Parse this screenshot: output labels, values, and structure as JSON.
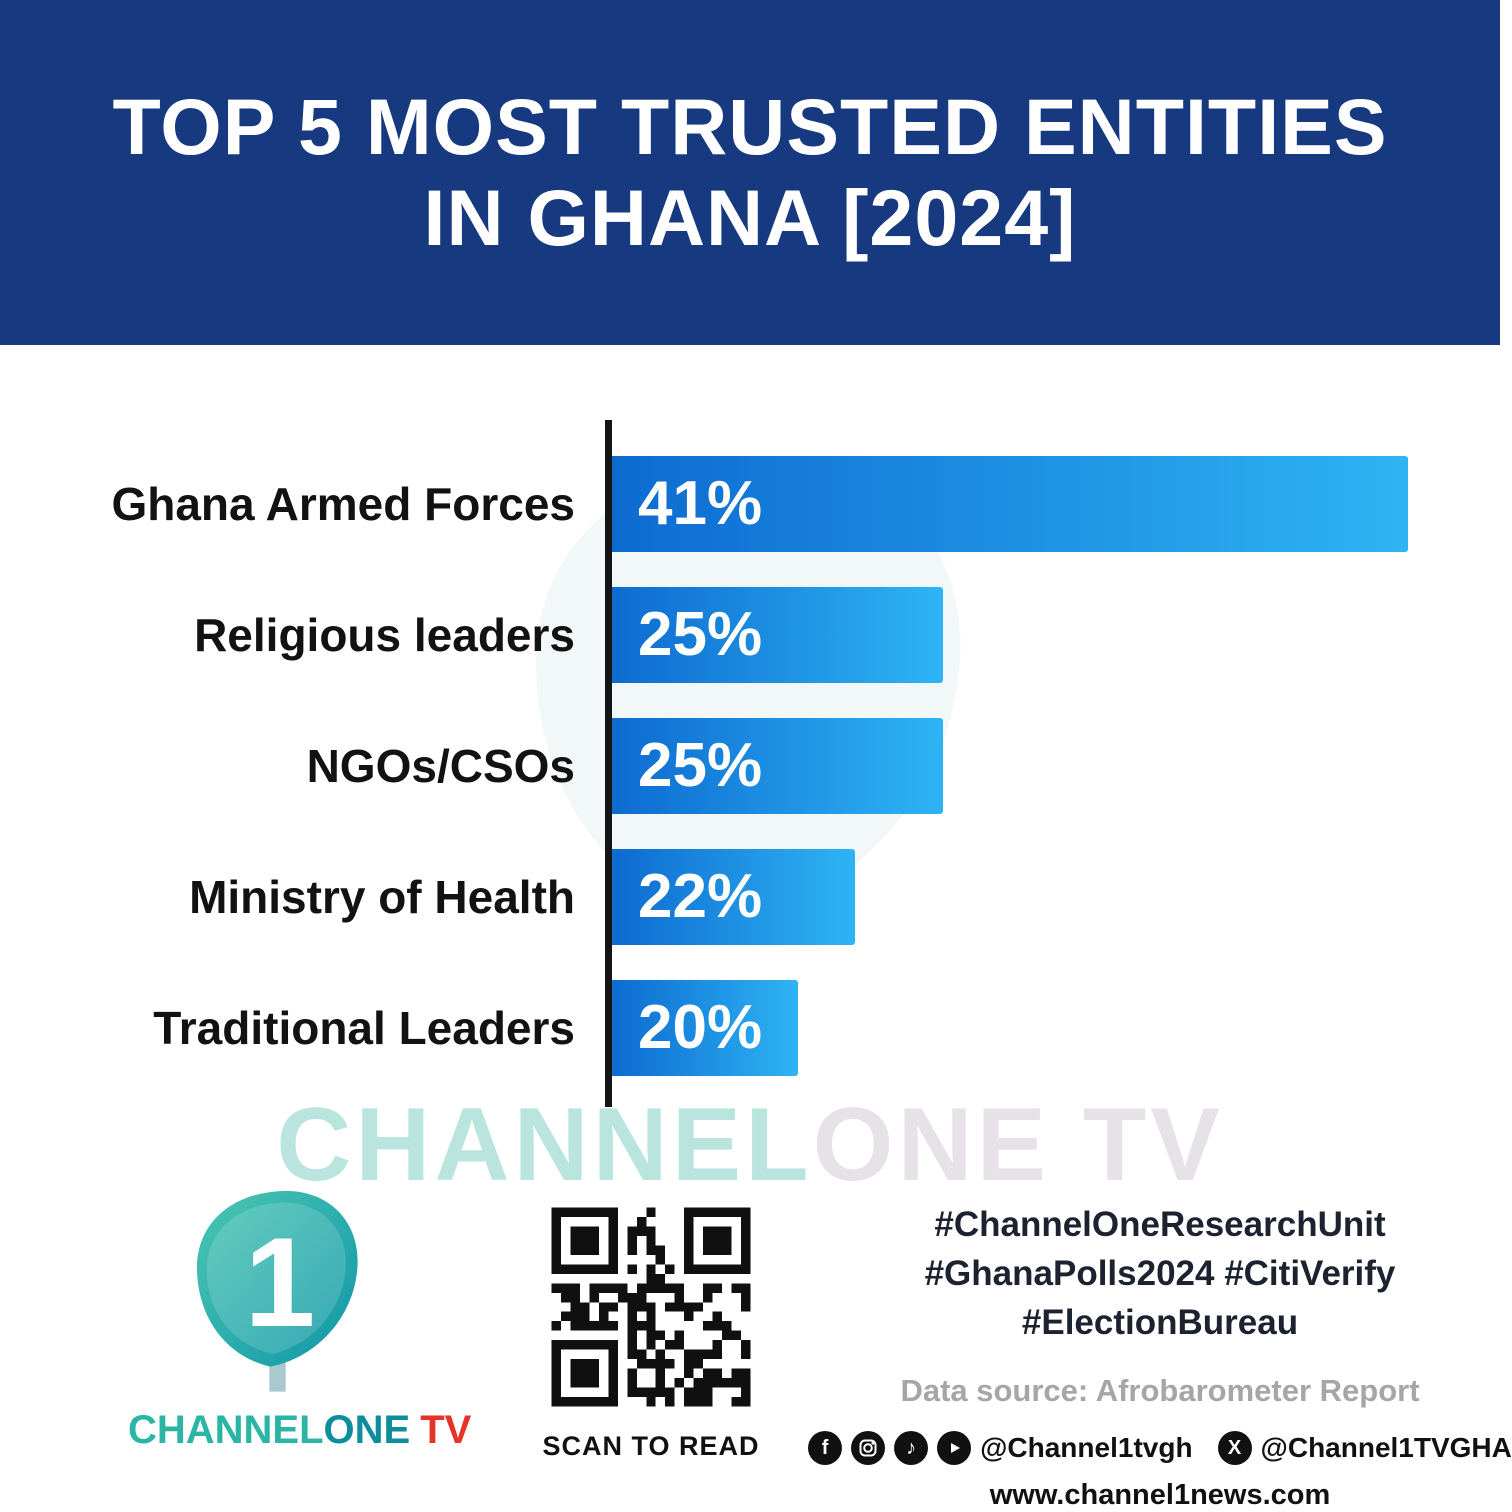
{
  "header": {
    "title_line1": "TOP 5 MOST TRUSTED ENTITIES",
    "title_line2": "IN GHANA [2024]"
  },
  "chart_data": {
    "type": "bar",
    "orientation": "horizontal",
    "title": "TOP 5 MOST TRUSTED ENTITIES IN GHANA [2024]",
    "categories": [
      "Ghana Armed Forces",
      "Religious leaders",
      "NGOs/CSOs",
      "Ministry of Health",
      "Traditional Leaders"
    ],
    "values": [
      41,
      25,
      25,
      22,
      20
    ],
    "value_labels": [
      "41%",
      "25%",
      "25%",
      "22%",
      "20%"
    ],
    "unit": "percent",
    "xlim": [
      0,
      41
    ],
    "grid": false,
    "legend": false,
    "bar_display_widths_pct": [
      95,
      39.5,
      39.5,
      29,
      22.2
    ],
    "bar_gradient": [
      "#0d6bd0",
      "#2eb4f4"
    ],
    "axis_color": "#151515",
    "label_color": "#121212"
  },
  "watermark": {
    "part1": "CHANNEL",
    "part2": "ONE TV"
  },
  "footer": {
    "logo": {
      "digit": "1",
      "brand_part1": "CHANNEL",
      "brand_part2": "ONE",
      "brand_part3": "TV"
    },
    "qr_caption": "SCAN TO READ",
    "hashtags": [
      "#ChannelOneResearchUnit",
      "#GhanaPolls2024 #CitiVerify",
      "#ElectionBureau"
    ],
    "data_source": "Data source: Afrobarometer Report",
    "social": {
      "icons": [
        "facebook",
        "instagram",
        "tiktok",
        "youtube",
        "x"
      ],
      "handle_main": "@Channel1tvgh",
      "x_handle": "@Channel1TVGHA"
    },
    "website": "www.channel1news.com"
  },
  "colors": {
    "header_bg": "#17397f",
    "brand_teal": "#2ab5a5",
    "brand_teal_dark": "#0e8e9c",
    "brand_red": "#e5332a"
  }
}
